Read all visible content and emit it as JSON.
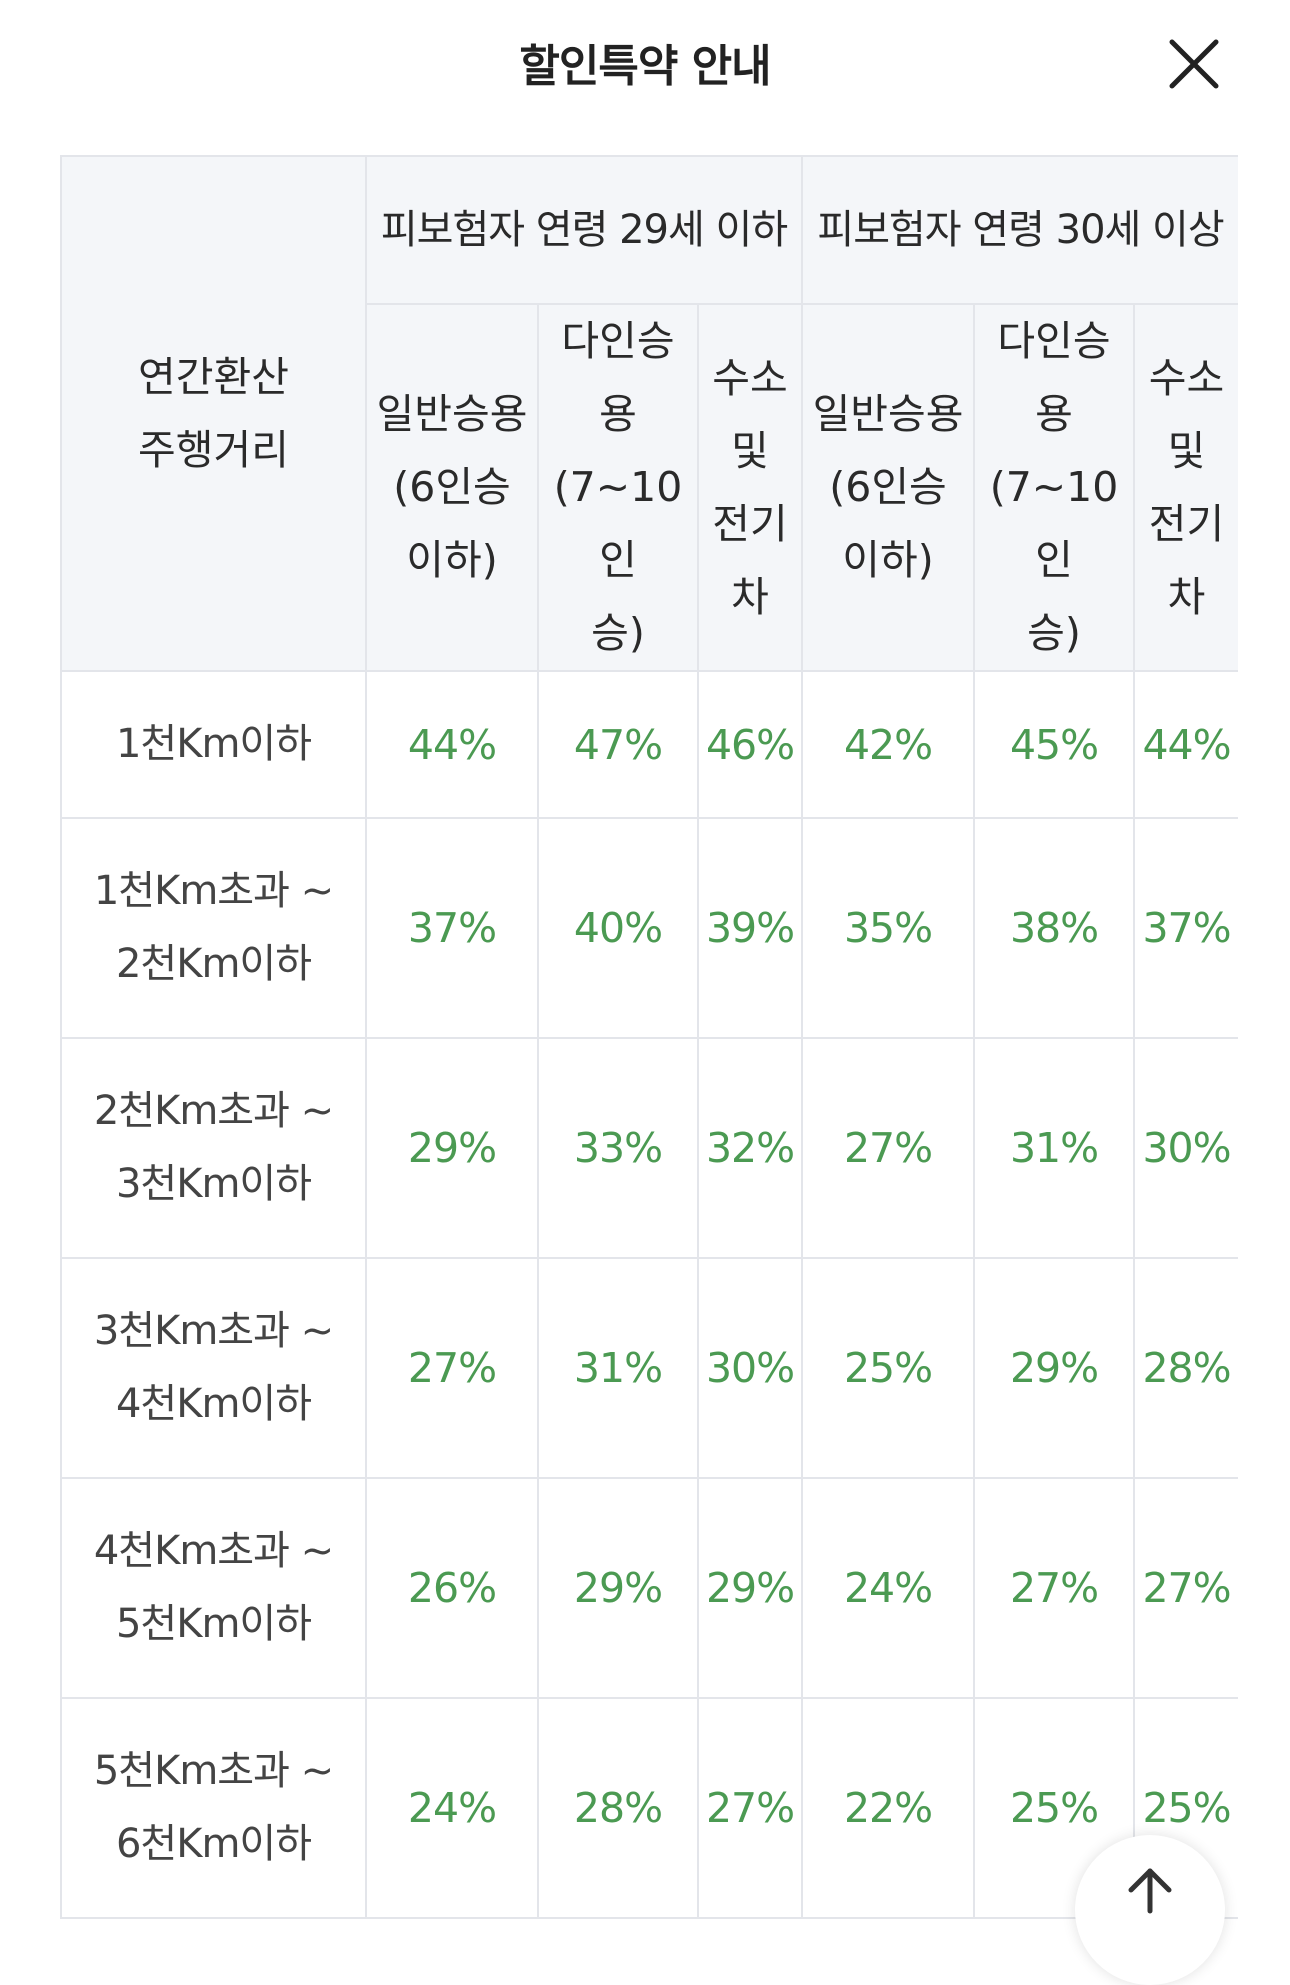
{
  "header": {
    "title": "할인특약 안내"
  },
  "table": {
    "distance_header": [
      "연간환산",
      "주행거리"
    ],
    "groups": [
      "피보험자 연령 29세 이하",
      "피보험자 연령 30세 이상"
    ],
    "subheaders": [
      [
        "일반승용",
        "(6인승",
        "이하)"
      ],
      [
        "다인승",
        "용",
        "(7~10인",
        "승)"
      ],
      [
        "수소",
        "및",
        "전기",
        "차"
      ],
      [
        "일반승용",
        "(6인승",
        "이하)"
      ],
      [
        "다인승",
        "용",
        "(7~10인",
        "승)"
      ],
      [
        "수소",
        "및",
        "전기",
        "차"
      ]
    ],
    "rows": [
      {
        "distance": [
          "1천Km이하"
        ],
        "rates": [
          "44%",
          "47%",
          "46%",
          "42%",
          "45%",
          "44%"
        ]
      },
      {
        "distance": [
          "1천Km초과 ~",
          "2천Km이하"
        ],
        "rates": [
          "37%",
          "40%",
          "39%",
          "35%",
          "38%",
          "37%"
        ]
      },
      {
        "distance": [
          "2천Km초과 ~",
          "3천Km이하"
        ],
        "rates": [
          "29%",
          "33%",
          "32%",
          "27%",
          "31%",
          "30%"
        ]
      },
      {
        "distance": [
          "3천Km초과 ~",
          "4천Km이하"
        ],
        "rates": [
          "27%",
          "31%",
          "30%",
          "25%",
          "29%",
          "28%"
        ]
      },
      {
        "distance": [
          "4천Km초과 ~",
          "5천Km이하"
        ],
        "rates": [
          "26%",
          "29%",
          "29%",
          "24%",
          "27%",
          "27%"
        ]
      },
      {
        "distance": [
          "5천Km초과 ~",
          "6천Km이하"
        ],
        "rates": [
          "24%",
          "28%",
          "27%",
          "22%",
          "25%",
          "25%"
        ]
      }
    ]
  },
  "icons": {
    "close": "close-icon",
    "scroll_top": "arrow-up-icon"
  },
  "colors": {
    "rate_text": "#4b9a52",
    "header_bg": "#f4f6f9",
    "border": "#e3e5ea"
  }
}
